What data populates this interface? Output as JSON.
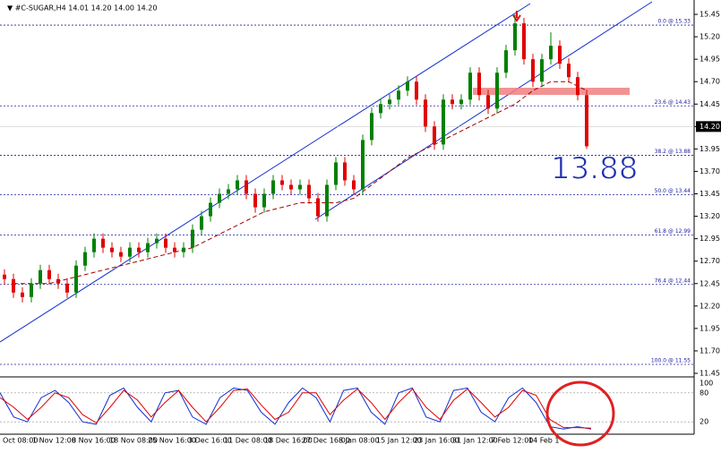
{
  "chart_data": {
    "type": "candlestick",
    "title": "▼ #C-SUGAR,H4  14.01 14.20 14.00 14.20",
    "annotation": "13.88",
    "up_color": "#008000",
    "down_color": "#e00000",
    "ylim": [
      11.42,
      15.61
    ],
    "yticks": [
      15.45,
      {
        "value": 15.2,
        "label": "15.20"
      },
      14.95,
      {
        "value": 14.7,
        "label": "14.70"
      },
      14.45,
      {
        "value": 14.2,
        "label": "14.20"
      },
      13.95,
      {
        "value": 13.7,
        "label": "13.70"
      },
      13.45,
      {
        "value": 13.2,
        "label": "13.20"
      },
      12.95,
      {
        "value": 12.7,
        "label": "12.70"
      },
      12.45,
      {
        "value": 12.2,
        "label": "12.20"
      },
      11.95,
      {
        "value": 11.7,
        "label": "11.70"
      },
      11.45
    ],
    "current_price": {
      "value": 14.2,
      "label": "14.20"
    },
    "x_labels": [
      "Oct 08:00",
      "1 Nov 12:00",
      "8 Nov 16:00",
      "18 Nov 08:00",
      "25 Nov 16:00",
      "3 Dec 16:00",
      "11 Dec 08:00",
      "18 Dec 16:00",
      "27 Dec 16:00",
      "8 Jan 08:00",
      "15 Jan 12:00",
      "23 Jan 16:00",
      "31 Jan 12:00",
      "7 Feb 12:00",
      "14 Feb 1"
    ],
    "fib_levels": [
      {
        "label": "0.0 @ 15.33",
        "price": 15.33
      },
      {
        "label": "23.6 @ 14.43",
        "price": 14.43
      },
      {
        "label": "38.2 @ 13.88",
        "price": 13.88
      },
      {
        "label": "50.0 @ 13.44",
        "price": 13.44
      },
      {
        "label": "61.8 @ 12.99",
        "price": 12.99
      },
      {
        "label": "76.4 @ 12.44",
        "price": 12.44
      },
      {
        "label": "100.0 @ 11.55",
        "price": 11.55
      }
    ],
    "candles": [
      [
        12.55,
        12.61,
        12.44,
        12.5
      ],
      [
        12.5,
        12.56,
        12.29,
        12.35
      ],
      [
        12.35,
        12.41,
        12.24,
        12.3
      ],
      [
        12.3,
        12.51,
        12.24,
        12.45
      ],
      [
        12.45,
        12.66,
        12.39,
        12.6
      ],
      [
        12.6,
        12.66,
        12.44,
        12.5
      ],
      [
        12.5,
        12.56,
        12.39,
        12.45
      ],
      [
        12.45,
        12.51,
        12.29,
        12.35
      ],
      [
        12.35,
        12.71,
        12.29,
        12.65
      ],
      [
        12.65,
        12.86,
        12.59,
        12.8
      ],
      [
        12.8,
        13.01,
        12.74,
        12.95
      ],
      [
        12.95,
        13.01,
        12.79,
        12.85
      ],
      [
        12.85,
        12.91,
        12.74,
        12.8
      ],
      [
        12.8,
        12.86,
        12.69,
        12.75
      ],
      [
        12.75,
        12.91,
        12.69,
        12.85
      ],
      [
        12.85,
        12.91,
        12.74,
        12.8
      ],
      [
        12.8,
        12.96,
        12.74,
        12.9
      ],
      [
        12.9,
        13.01,
        12.84,
        12.95
      ],
      [
        12.95,
        13.01,
        12.79,
        12.85
      ],
      [
        12.85,
        12.91,
        12.74,
        12.8
      ],
      [
        12.8,
        12.91,
        12.74,
        12.85
      ],
      [
        12.85,
        13.11,
        12.79,
        13.05
      ],
      [
        13.05,
        13.26,
        12.99,
        13.2
      ],
      [
        13.2,
        13.41,
        13.14,
        13.35
      ],
      [
        13.35,
        13.51,
        13.29,
        13.45
      ],
      [
        13.45,
        13.56,
        13.39,
        13.5
      ],
      [
        13.5,
        13.66,
        13.44,
        13.6
      ],
      [
        13.6,
        13.66,
        13.39,
        13.45
      ],
      [
        13.45,
        13.51,
        13.24,
        13.3
      ],
      [
        13.3,
        13.51,
        13.24,
        13.45
      ],
      [
        13.45,
        13.66,
        13.39,
        13.6
      ],
      [
        13.6,
        13.66,
        13.49,
        13.55
      ],
      [
        13.55,
        13.61,
        13.44,
        13.5
      ],
      [
        13.5,
        13.61,
        13.44,
        13.55
      ],
      [
        13.55,
        13.61,
        13.34,
        13.4
      ],
      [
        13.4,
        13.46,
        13.14,
        13.2
      ],
      [
        13.2,
        13.61,
        13.14,
        13.55
      ],
      [
        13.55,
        13.86,
        13.49,
        13.8
      ],
      [
        13.8,
        13.86,
        13.54,
        13.6
      ],
      [
        13.6,
        13.66,
        13.44,
        13.5
      ],
      [
        13.5,
        14.11,
        13.44,
        14.05
      ],
      [
        14.05,
        14.41,
        13.99,
        14.35
      ],
      [
        14.35,
        14.51,
        14.29,
        14.45
      ],
      [
        14.45,
        14.56,
        14.39,
        14.5
      ],
      [
        14.5,
        14.66,
        14.44,
        14.6
      ],
      [
        14.6,
        14.76,
        14.54,
        14.7
      ],
      [
        14.7,
        14.76,
        14.44,
        14.5
      ],
      [
        14.5,
        14.56,
        14.14,
        14.2
      ],
      [
        14.2,
        14.26,
        13.94,
        14.0
      ],
      [
        14.0,
        14.56,
        13.94,
        14.5
      ],
      [
        14.5,
        14.56,
        14.39,
        14.45
      ],
      [
        14.45,
        14.56,
        14.39,
        14.5
      ],
      [
        14.5,
        14.86,
        14.44,
        14.8
      ],
      [
        14.8,
        14.86,
        14.49,
        14.55
      ],
      [
        14.55,
        14.61,
        14.34,
        14.4
      ],
      [
        14.4,
        14.86,
        14.34,
        14.8
      ],
      [
        14.8,
        15.11,
        14.74,
        15.05
      ],
      [
        15.05,
        15.45,
        14.99,
        15.35
      ],
      [
        15.35,
        15.41,
        14.89,
        14.95
      ],
      [
        14.95,
        15.01,
        14.64,
        14.7
      ],
      [
        14.7,
        15.01,
        14.64,
        14.95
      ],
      [
        14.95,
        15.25,
        14.89,
        15.1
      ],
      [
        15.1,
        15.16,
        14.84,
        14.9
      ],
      [
        14.9,
        14.96,
        14.69,
        14.75
      ],
      [
        14.75,
        14.81,
        14.49,
        14.55
      ],
      [
        14.55,
        14.61,
        13.95,
        13.98
      ]
    ],
    "ma": {
      "color": "#a00000",
      "values": [
        12.45,
        12.45,
        12.45,
        12.5,
        12.55,
        12.6,
        12.65,
        12.7,
        12.75,
        12.8,
        12.85,
        12.95,
        13.05,
        13.15,
        13.25,
        13.3,
        13.35,
        13.35,
        13.35,
        13.4,
        13.55,
        13.7,
        13.85,
        13.95,
        14.05,
        14.15,
        14.25,
        14.35,
        14.45,
        14.6,
        14.7,
        14.7,
        14.6
      ]
    },
    "oscillator": {
      "ylim": [
        0,
        100
      ],
      "yticks": [
        100,
        80,
        20
      ],
      "levels": [
        80,
        20
      ],
      "series": [
        {
          "color": "#1030d0",
          "values": [
            80,
            30,
            20,
            70,
            85,
            60,
            20,
            15,
            75,
            90,
            50,
            20,
            80,
            85,
            30,
            15,
            70,
            90,
            85,
            40,
            15,
            60,
            90,
            70,
            20,
            85,
            90,
            40,
            15,
            80,
            90,
            30,
            20,
            85,
            90,
            40,
            20,
            70,
            90,
            60,
            10,
            5,
            10,
            5
          ]
        },
        {
          "color": "#e00000",
          "values": [
            70,
            50,
            25,
            50,
            80,
            70,
            35,
            18,
            50,
            85,
            65,
            30,
            60,
            85,
            50,
            20,
            50,
            85,
            88,
            55,
            25,
            40,
            80,
            80,
            35,
            65,
            88,
            60,
            25,
            60,
            88,
            50,
            25,
            65,
            88,
            60,
            30,
            50,
            85,
            75,
            25,
            8,
            8,
            7
          ]
        }
      ]
    }
  }
}
